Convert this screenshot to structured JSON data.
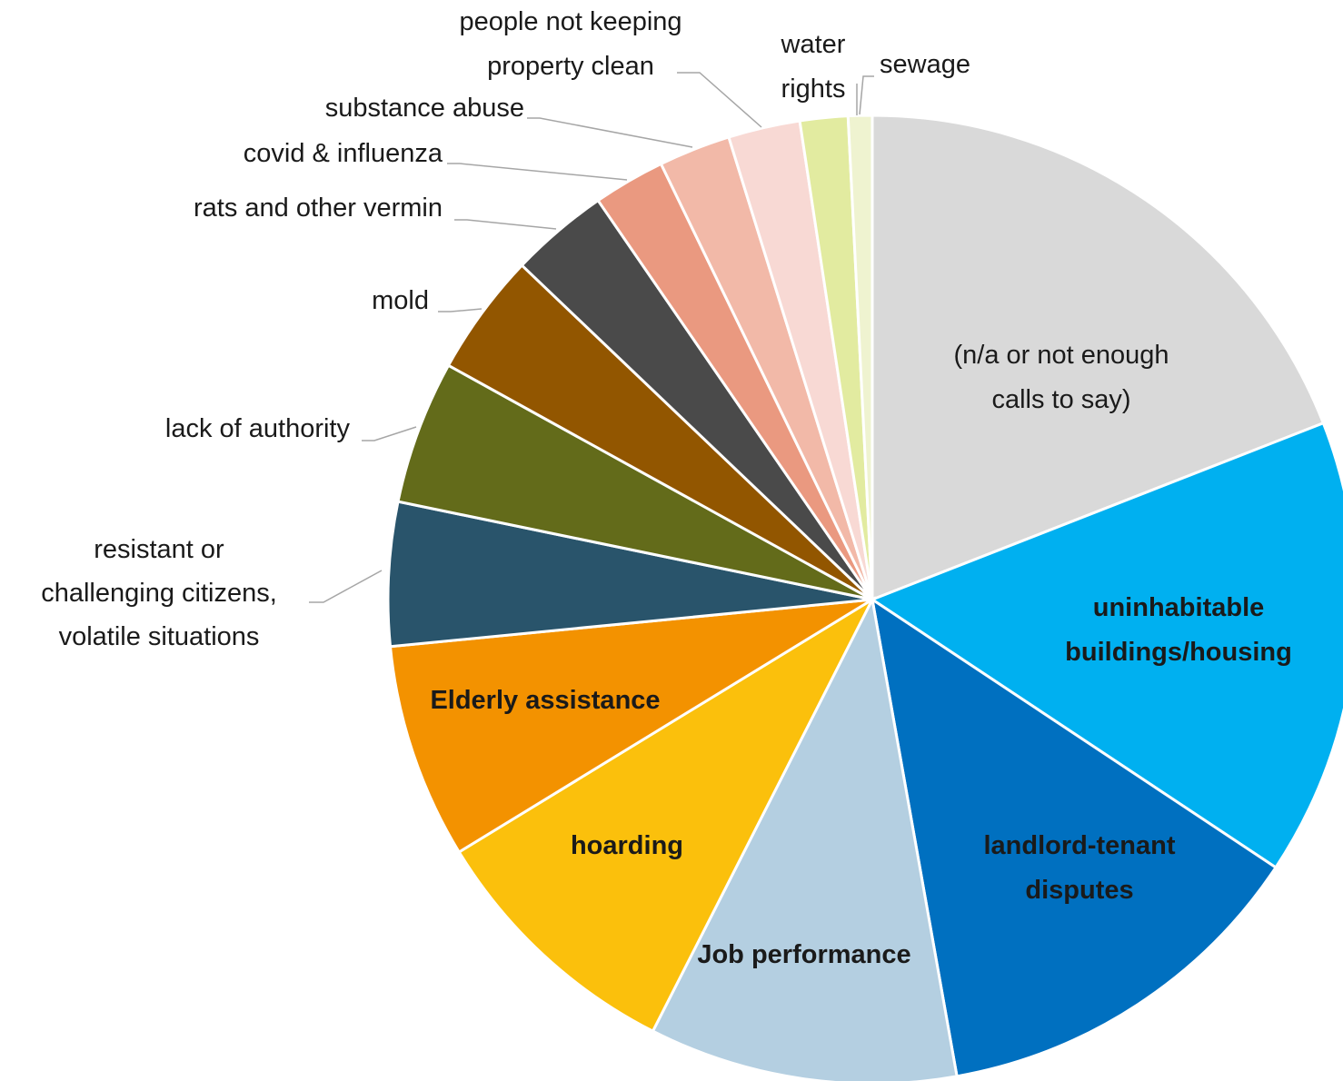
{
  "chart_data": {
    "type": "pie",
    "categories": [
      "(n/a or not enough\ncalls to say)",
      "uninhabitable\nbuildings/housing",
      "landlord-tenant\ndisputes",
      "Job performance",
      "hoarding",
      "Elderly assistance",
      "resistant or\nchallenging citizens,\nvolatile situations",
      "lack of authority",
      "mold",
      "rats and other vermin",
      "covid & influenza",
      "substance abuse",
      "people not keeping\nproperty clean",
      "water\nrights",
      "sewage"
    ],
    "values": [
      19.1,
      15.3,
      12.9,
      10.3,
      8.8,
      7.2,
      4.8,
      4.8,
      4.1,
      3.3,
      2.4,
      2.4,
      2.4,
      1.6,
      0.8
    ],
    "colors": [
      "#d9d9d9",
      "#00b0f0",
      "#0070c0",
      "#b4cfe1",
      "#fbc00c",
      "#f39200",
      "#29546b",
      "#636b1a",
      "#925600",
      "#4a4a4a",
      "#ea9980",
      "#f2b9a8",
      "#f8d9d4",
      "#e2eba0",
      "#eff3d0"
    ]
  }
}
